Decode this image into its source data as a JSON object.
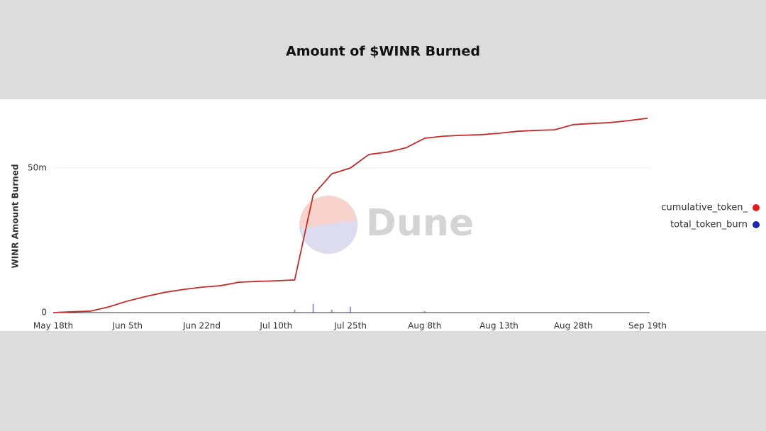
{
  "chart_data": {
    "type": "line",
    "title": "Amount of $WINR Burned",
    "ylabel": "WINR Amount Burned",
    "watermark": "Dune",
    "categories": [
      "May 18th",
      null,
      null,
      null,
      "Jun 5th",
      null,
      null,
      null,
      "Jun 22nd",
      null,
      null,
      null,
      "Jul 10th",
      null,
      null,
      null,
      "Jul 25th",
      null,
      null,
      null,
      "Aug 8th",
      null,
      null,
      null,
      "Aug 13th",
      null,
      null,
      null,
      "Aug 28th",
      null,
      null,
      null,
      "Sep 19th"
    ],
    "series": [
      {
        "name": "cumulative_token_",
        "color": "#c42b2b",
        "values": [
          0,
          300000,
          500000,
          2000000,
          4000000,
          5600000,
          7000000,
          8000000,
          8800000,
          9300000,
          10500000,
          10800000,
          11000000,
          11300000,
          40700000,
          48000000,
          50000000,
          54700000,
          55500000,
          57000000,
          60300000,
          61000000,
          61300000,
          61500000,
          62000000,
          62700000,
          63000000,
          63200000,
          65000000,
          65400000,
          65700000,
          66400000,
          67200000
        ]
      },
      {
        "name": "total_token_burn",
        "color": "#1f2fb0",
        "values": [
          0,
          0,
          0,
          0,
          0,
          0,
          0,
          0,
          0,
          0,
          0,
          0,
          0,
          1000000,
          3000000,
          1000000,
          2000000,
          0,
          0,
          0,
          500000,
          0,
          0,
          0,
          0,
          0,
          0,
          0,
          0,
          0,
          0,
          0,
          0
        ]
      }
    ],
    "ylim": [
      0,
      70000000
    ],
    "yticks": [
      0,
      {
        "value": 50000000,
        "label": "50m"
      }
    ],
    "grid": true
  }
}
